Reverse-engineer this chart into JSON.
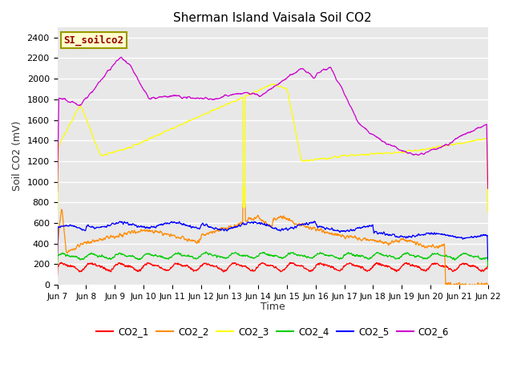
{
  "title": "Sherman Island Vaisala Soil CO2",
  "ylabel": "Soil CO2 (mV)",
  "xlabel": "Time",
  "label_box": "SI_soilco2",
  "ylim": [
    0,
    2500
  ],
  "yticks": [
    0,
    200,
    400,
    600,
    800,
    1000,
    1200,
    1400,
    1600,
    1800,
    2000,
    2200,
    2400
  ],
  "xtick_labels": [
    "Jun 7",
    "Jun 8",
    "Jun 9",
    "Jun 10",
    "Jun 11",
    "Jun 12",
    "Jun 13",
    "Jun 14",
    "Jun 15",
    "Jun 16",
    "Jun 17",
    "Jun 18",
    "Jun 19",
    "Jun 20",
    "Jun 21",
    "Jun 22"
  ],
  "colors": {
    "CO2_1": "#ff0000",
    "CO2_2": "#ff8c00",
    "CO2_3": "#ffff00",
    "CO2_4": "#00cc00",
    "CO2_5": "#0000ff",
    "CO2_6": "#cc00cc"
  },
  "fig_bg": "#ffffff",
  "plot_bg": "#e8e8e8",
  "grid_color": "#ffffff",
  "label_box_bg": "#ffffcc",
  "label_box_fg": "#990000",
  "title_color": "#000000"
}
